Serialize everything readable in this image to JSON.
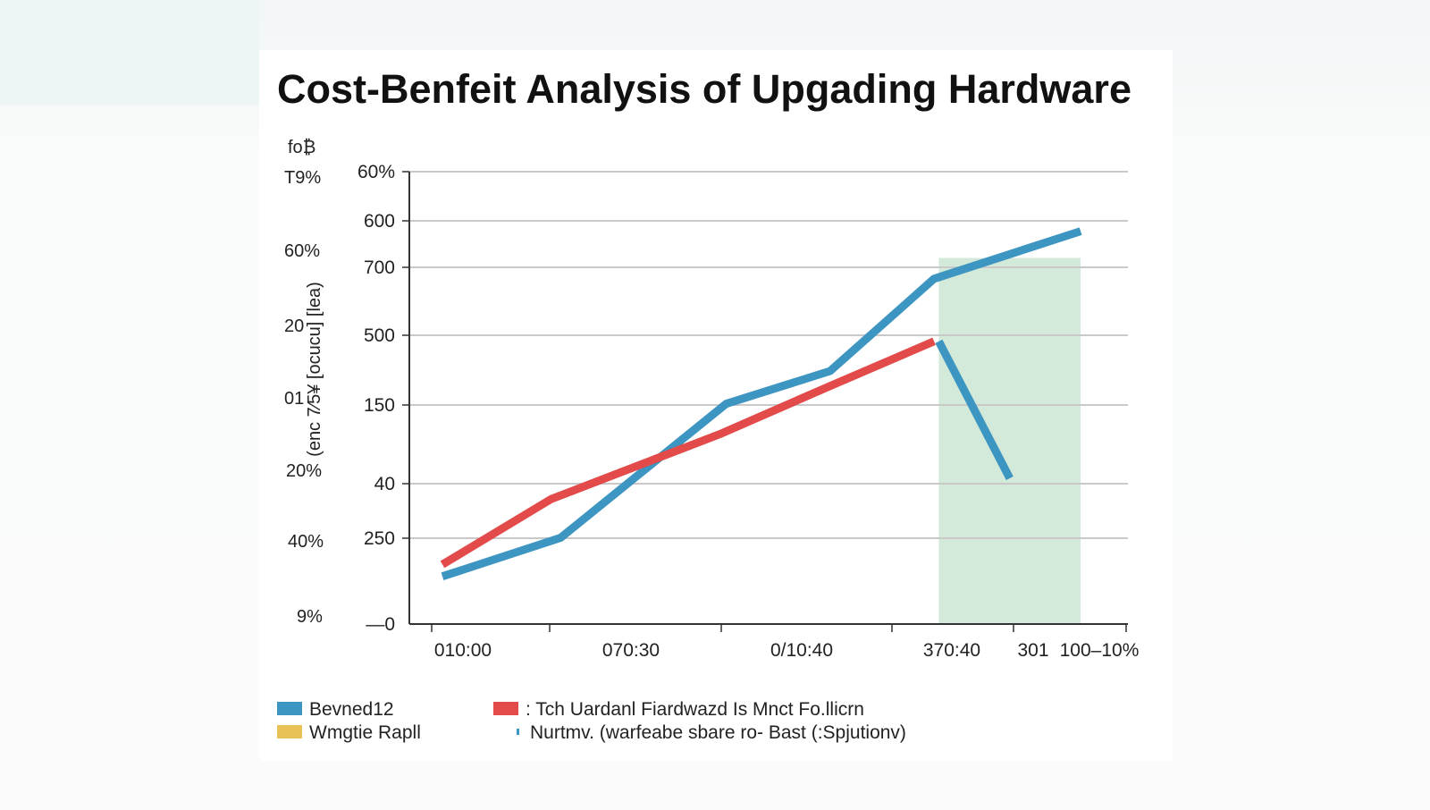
{
  "chart_data": {
    "type": "line",
    "title": "Cost-Benfeit Analysis of Upgading Hardware",
    "xlabel": "",
    "ylabel": "(enc 7⁄5¥ [ocucu] [lea)",
    "x_ticks": [
      "010:00",
      "070:30",
      "0/10:40",
      "370:40",
      "301",
      "100–10%"
    ],
    "y_ticks": [
      "60%",
      "600",
      "700",
      "500",
      "150",
      "40",
      "250",
      "—0"
    ],
    "secondary_ticks": [
      "fo₿",
      "T9%",
      "60%",
      "20",
      "01",
      "20%",
      "40%",
      "9%"
    ],
    "ylim": [
      0,
      7.6
    ],
    "xlim": [
      0,
      7.6
    ],
    "grid": true,
    "series": [
      {
        "name": "",
        "color": "#3d95c1",
        "points": [
          [
            0.35,
            0.8
          ],
          [
            1.6,
            1.45
          ],
          [
            3.35,
            3.7
          ],
          [
            4.45,
            4.25
          ],
          [
            5.55,
            5.8
          ],
          [
            7.1,
            6.6
          ]
        ]
      },
      {
        "name": "",
        "color": "#e24b4a",
        "points": [
          [
            0.35,
            1.0
          ],
          [
            1.5,
            2.1
          ],
          [
            3.3,
            3.2
          ],
          [
            4.45,
            4.0
          ],
          [
            5.55,
            4.75
          ]
        ]
      },
      {
        "name": "",
        "color": "#3d95c1",
        "points": [
          [
            5.6,
            4.75
          ],
          [
            6.35,
            2.45
          ]
        ]
      }
    ],
    "highlight": {
      "x0": 5.6,
      "x1": 7.1,
      "y1": 6.15,
      "color": "#d3e9d9"
    },
    "legend": [
      {
        "label": "Bevned12",
        "color": "#3d95c1",
        "marker": "box"
      },
      {
        "label": "Wmgtie Rapll",
        "color": "#e8c157",
        "marker": "box"
      },
      {
        "label": ": Tch Uardanl Fiardwazd Is  Mnct Fo.llicrn",
        "color": "#e24b4a",
        "marker": "box"
      },
      {
        "label": "Nurtmv. (warfeabe  sbare ro- Bast (:Spjutionv)",
        "color": "#3d95c1",
        "marker": "tick"
      }
    ]
  }
}
